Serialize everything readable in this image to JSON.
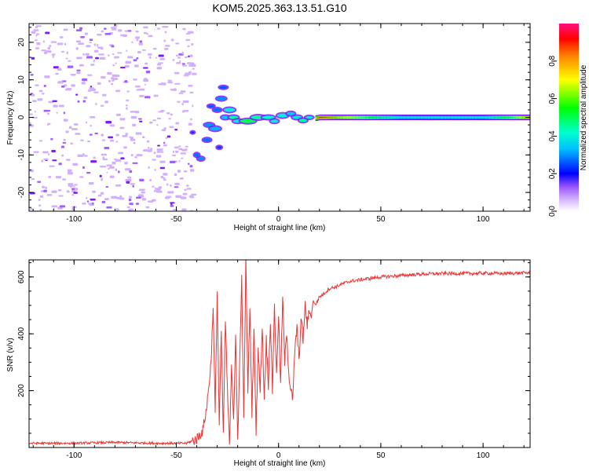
{
  "title": "KOM5.2025.363.13.51.G10",
  "chart_data": [
    {
      "type": "heatmap",
      "title": "KOM5.2025.363.13.51.G10",
      "xlabel": "Height of straight line (km)",
      "ylabel": "Frequency (Hz)",
      "xlim": [
        -122,
        123
      ],
      "ylim": [
        -25,
        25
      ],
      "xticks": [
        -100,
        -50,
        0,
        50,
        100
      ],
      "yticks": [
        -20,
        -10,
        0,
        10,
        20
      ],
      "xtick_labels": [
        "-100",
        "-50",
        "0",
        "50",
        "100"
      ],
      "ytick_labels": [
        "-20",
        "-10",
        "0",
        "10",
        "20"
      ],
      "colorbar": {
        "label": "Normalized spectral amplitude",
        "range": [
          0,
          1
        ],
        "ticks": [
          0.0,
          0.2,
          0.4,
          0.6,
          0.8
        ],
        "tick_labels": [
          "0.0",
          "0.2",
          "0.4",
          "0.6",
          "0.8"
        ],
        "colors": [
          "#ffffff",
          "#c8a0ff",
          "#7800ff",
          "#0000ff",
          "#00ffff",
          "#00ff00",
          "#ffff00",
          "#ff0000",
          "#ff0080"
        ]
      },
      "ridge": [
        {
          "x": -40,
          "y": -10,
          "amp": 0.2
        },
        {
          "x": -36,
          "y": -3,
          "amp": 0.2
        },
        {
          "x": -30,
          "y": 5,
          "amp": 0.2
        },
        {
          "x": -25,
          "y": 0,
          "amp": 0.3
        },
        {
          "x": -20,
          "y": 0,
          "amp": 0.3
        },
        {
          "x": -15,
          "y": -1,
          "amp": 0.35
        },
        {
          "x": -5,
          "y": 0,
          "amp": 0.35
        },
        {
          "x": 0,
          "y": 0,
          "amp": 0.35
        },
        {
          "x": 5,
          "y": 0.5,
          "amp": 0.25
        },
        {
          "x": 12,
          "y": -0.8,
          "amp": 0.3
        },
        {
          "x": 20,
          "y": 0,
          "amp": 0.9
        },
        {
          "x": 30,
          "y": 0,
          "amp": 0.75
        },
        {
          "x": 45,
          "y": 0,
          "amp": 0.55
        },
        {
          "x": 60,
          "y": 0,
          "amp": 0.42
        },
        {
          "x": 80,
          "y": 0,
          "amp": 0.42
        },
        {
          "x": 100,
          "y": 0,
          "amp": 0.42
        },
        {
          "x": 115,
          "y": 0,
          "amp": 0.6
        },
        {
          "x": 123,
          "y": 0,
          "amp": 0.85
        }
      ]
    },
    {
      "type": "line",
      "xlabel": "Height of straight line (km)",
      "ylabel": "SNR (v/v)",
      "xlim": [
        -122,
        123
      ],
      "ylim": [
        0,
        660
      ],
      "xticks": [
        -100,
        -50,
        0,
        50,
        100
      ],
      "yticks": [
        200,
        400,
        600
      ],
      "xtick_labels": [
        "-100",
        "-50",
        "0",
        "50",
        "100"
      ],
      "ytick_labels": [
        "200",
        "400",
        "600"
      ],
      "color": "#ee3333",
      "series": [
        {
          "name": "SNR",
          "x": [
            -122,
            -100,
            -80,
            -60,
            -50,
            -45,
            -40,
            -37,
            -35,
            -33,
            -32,
            -31,
            -30,
            -29,
            -28,
            -27,
            -26,
            -25,
            -24,
            -23,
            -22,
            -21,
            -20,
            -19,
            -18,
            -17,
            -16,
            -15,
            -14,
            -13,
            -12,
            -11,
            -10,
            -9,
            -8,
            -7,
            -6,
            -5,
            -4,
            -3,
            -2,
            -1,
            0,
            1,
            2,
            3,
            4,
            5,
            6,
            7,
            8,
            9,
            10,
            11,
            12,
            13,
            14,
            15,
            16,
            17,
            18,
            20,
            22,
            25,
            28,
            31,
            35,
            40,
            45,
            50,
            60,
            70,
            80,
            90,
            100,
            110,
            123
          ],
          "y": [
            15,
            15,
            18,
            15,
            15,
            15,
            30,
            60,
            150,
            300,
            500,
            120,
            550,
            80,
            400,
            40,
            450,
            200,
            10,
            300,
            100,
            380,
            30,
            300,
            600,
            90,
            660,
            200,
            500,
            120,
            420,
            60,
            350,
            200,
            430,
            170,
            380,
            220,
            450,
            200,
            510,
            250,
            470,
            220,
            530,
            300,
            410,
            260,
            200,
            170,
            350,
            420,
            310,
            450,
            380,
            500,
            430,
            480,
            460,
            520,
            500,
            530,
            540,
            560,
            565,
            575,
            585,
            590,
            595,
            600,
            605,
            610,
            612,
            612,
            613,
            612,
            615
          ]
        }
      ]
    }
  ]
}
